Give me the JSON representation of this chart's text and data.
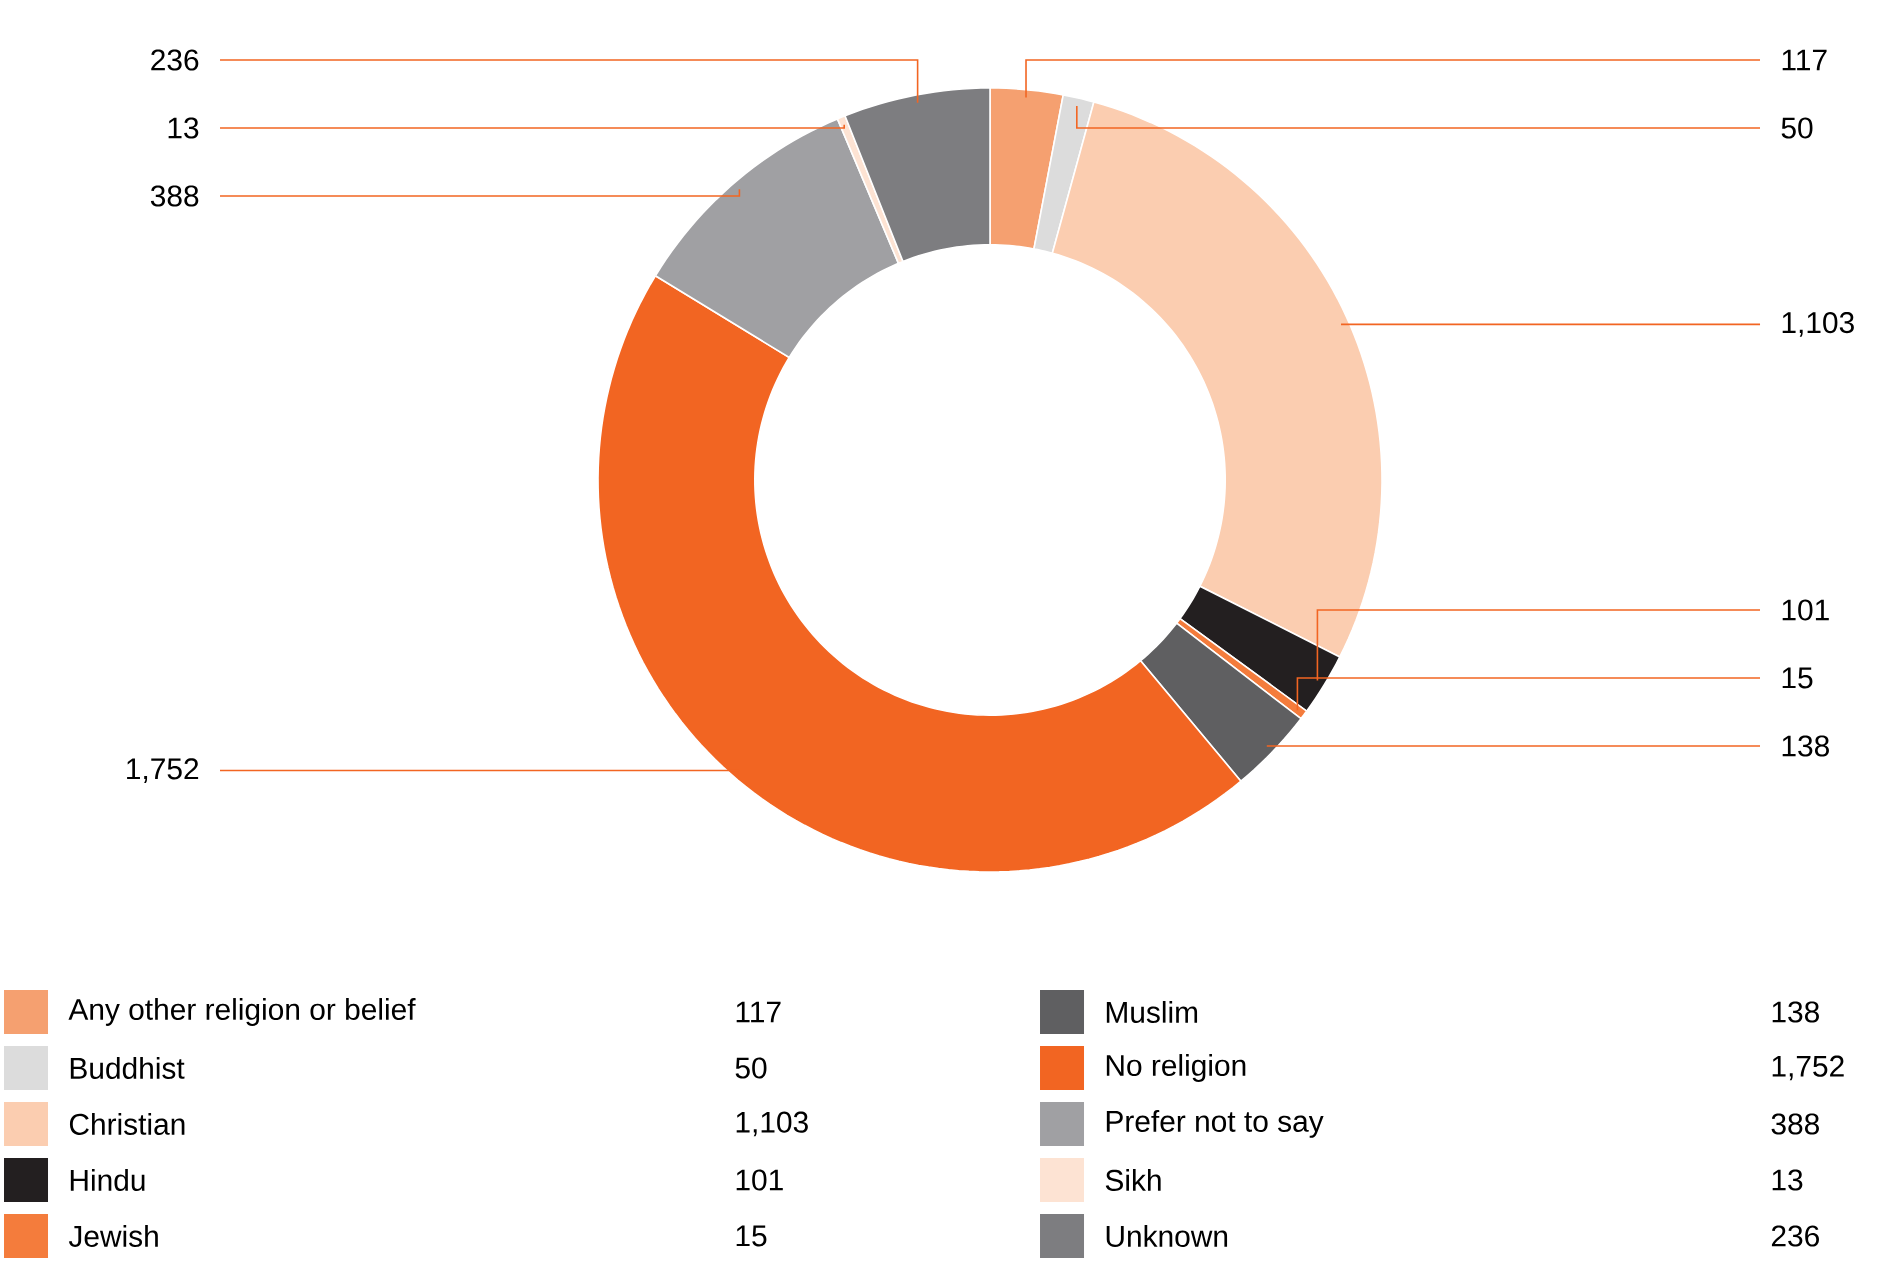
{
  "chart_data": {
    "type": "donut",
    "categories": [
      "Any other religion or belief",
      "Buddhist",
      "Christian",
      "Hindu",
      "Jewish",
      "Muslim",
      "No religion",
      "Prefer not to say",
      "Sikh",
      "Unknown"
    ],
    "values": [
      117,
      50,
      1103,
      101,
      15,
      138,
      1752,
      388,
      13,
      236
    ],
    "colors": [
      "#f5a070",
      "#dcdcdc",
      "#fbcdb0",
      "#231f20",
      "#f47c3c",
      "#5f5f61",
      "#f26522",
      "#a0a0a3",
      "#fde3d3",
      "#7d7d80"
    ],
    "value_labels": [
      "117",
      "50",
      "1,103",
      "101",
      "15",
      "138",
      "1,752",
      "388",
      "13",
      "236"
    ],
    "legend": "bottom"
  }
}
